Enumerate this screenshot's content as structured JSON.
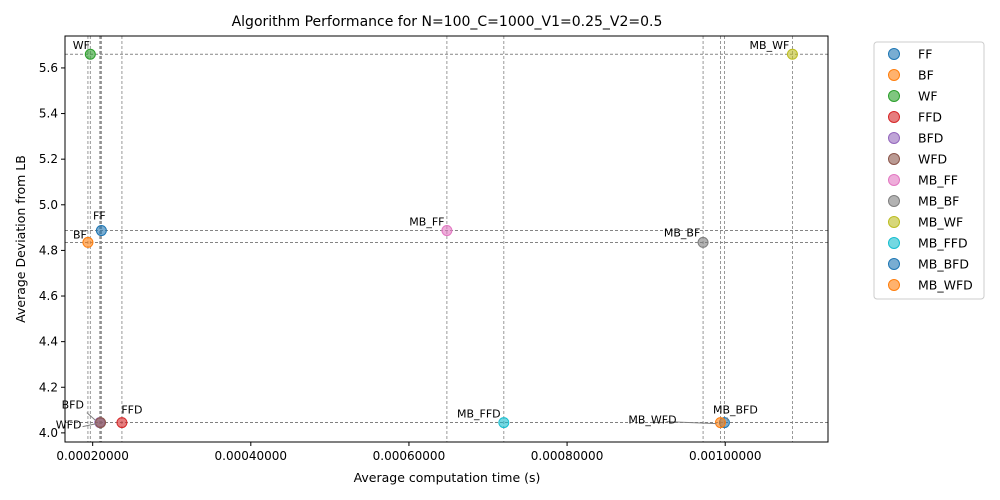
{
  "chart_data": {
    "type": "scatter",
    "title": "Algorithm Performance for N=100_C=1000_V1=0.25_V2=0.5",
    "xlabel": "Average computation time (s)",
    "ylabel": "Average Deviation from LB",
    "xlim": [
      0.000165,
      0.00113
    ],
    "ylim": [
      3.96,
      5.74
    ],
    "xticks": [
      0.0002,
      0.0004,
      0.0006,
      0.0008,
      0.001
    ],
    "xtick_labels": [
      "0.00020000",
      "0.00040000",
      "0.00060000",
      "0.00080000",
      "0.00100000"
    ],
    "yticks": [
      4.0,
      4.2,
      4.4,
      4.6,
      4.8,
      5.0,
      5.2,
      5.4,
      5.6
    ],
    "ytick_labels": [
      "4.0",
      "4.2",
      "4.4",
      "4.6",
      "4.8",
      "5.0",
      "5.2",
      "5.4",
      "5.6"
    ],
    "grid": "reference lines at each point",
    "legend_position": "outside-right",
    "series": [
      {
        "name": "FF",
        "x": 0.000211,
        "y": 4.887,
        "color": "#1f77b4"
      },
      {
        "name": "BF",
        "x": 0.000194,
        "y": 4.835,
        "color": "#ff7f0e"
      },
      {
        "name": "WF",
        "x": 0.000197,
        "y": 5.66,
        "color": "#2ca02c"
      },
      {
        "name": "FFD",
        "x": 0.000237,
        "y": 4.045,
        "color": "#d62728"
      },
      {
        "name": "BFD",
        "x": 0.000209,
        "y": 4.045,
        "color": "#9467bd"
      },
      {
        "name": "WFD",
        "x": 0.00021,
        "y": 4.045,
        "color": "#8c564b"
      },
      {
        "name": "MB_FF",
        "x": 0.000648,
        "y": 4.887,
        "color": "#e377c2"
      },
      {
        "name": "MB_BF",
        "x": 0.000972,
        "y": 4.835,
        "color": "#7f7f7f"
      },
      {
        "name": "MB_WF",
        "x": 0.001085,
        "y": 5.66,
        "color": "#bcbd22"
      },
      {
        "name": "MB_FFD",
        "x": 0.00072,
        "y": 4.045,
        "color": "#17becf"
      },
      {
        "name": "MB_BFD",
        "x": 0.000999,
        "y": 4.045,
        "color": "#1f77b4"
      },
      {
        "name": "MB_WFD",
        "x": 0.000994,
        "y": 4.045,
        "color": "#ff7f0e"
      }
    ]
  }
}
